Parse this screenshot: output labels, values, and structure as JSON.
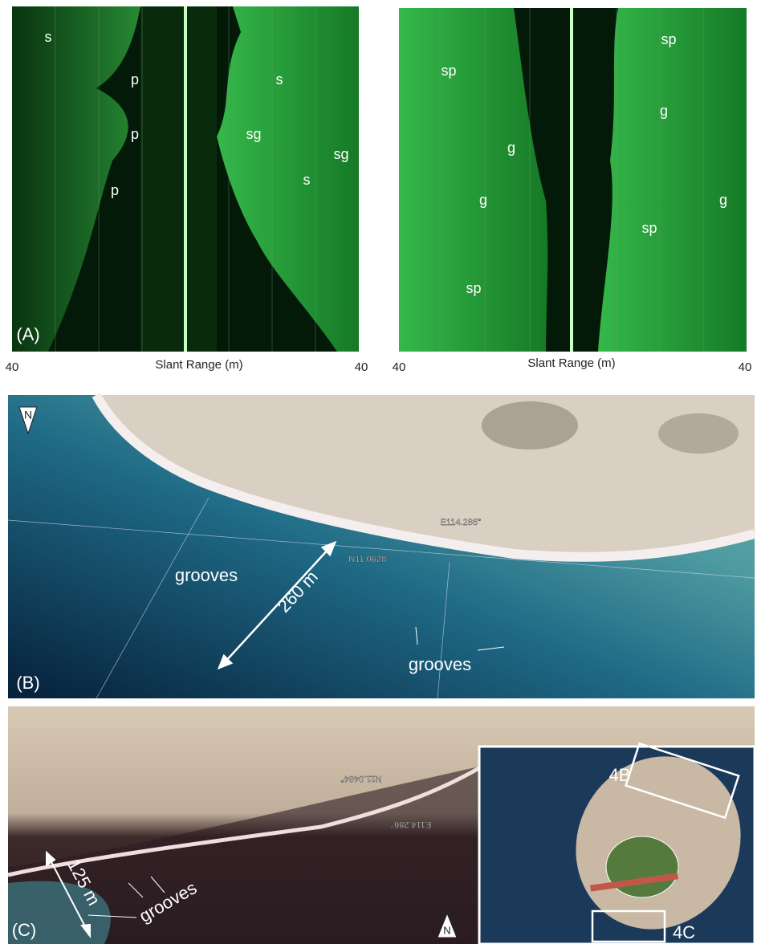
{
  "panel_a": {
    "labels": [
      "s",
      "p",
      "p",
      "p",
      "s",
      "sg",
      "sg",
      "s"
    ],
    "panel_label": "(A)",
    "axis": {
      "left": "40",
      "title": "Slant Range (m)",
      "right": "40"
    }
  },
  "panel_a_right": {
    "labels": [
      "sp",
      "g",
      "g",
      "sp",
      "sp",
      "g",
      "g",
      "sp"
    ],
    "axis": {
      "left": "40",
      "title": "Slant Range (m)",
      "right": "40"
    }
  },
  "panel_b": {
    "north": "N",
    "longitude": "E114.286°",
    "latitude": "N11.0628°",
    "grooves_left": "grooves",
    "distance": "260 m",
    "grooves_right": "grooves",
    "panel_label": "(B)"
  },
  "panel_c": {
    "latitude": "N11.0484°",
    "longitude": "E114.286°",
    "distance": "125 m",
    "grooves": "grooves",
    "panel_label": "(C)",
    "north": "N",
    "inset": {
      "box_b": "4B",
      "box_c": "4C"
    }
  }
}
